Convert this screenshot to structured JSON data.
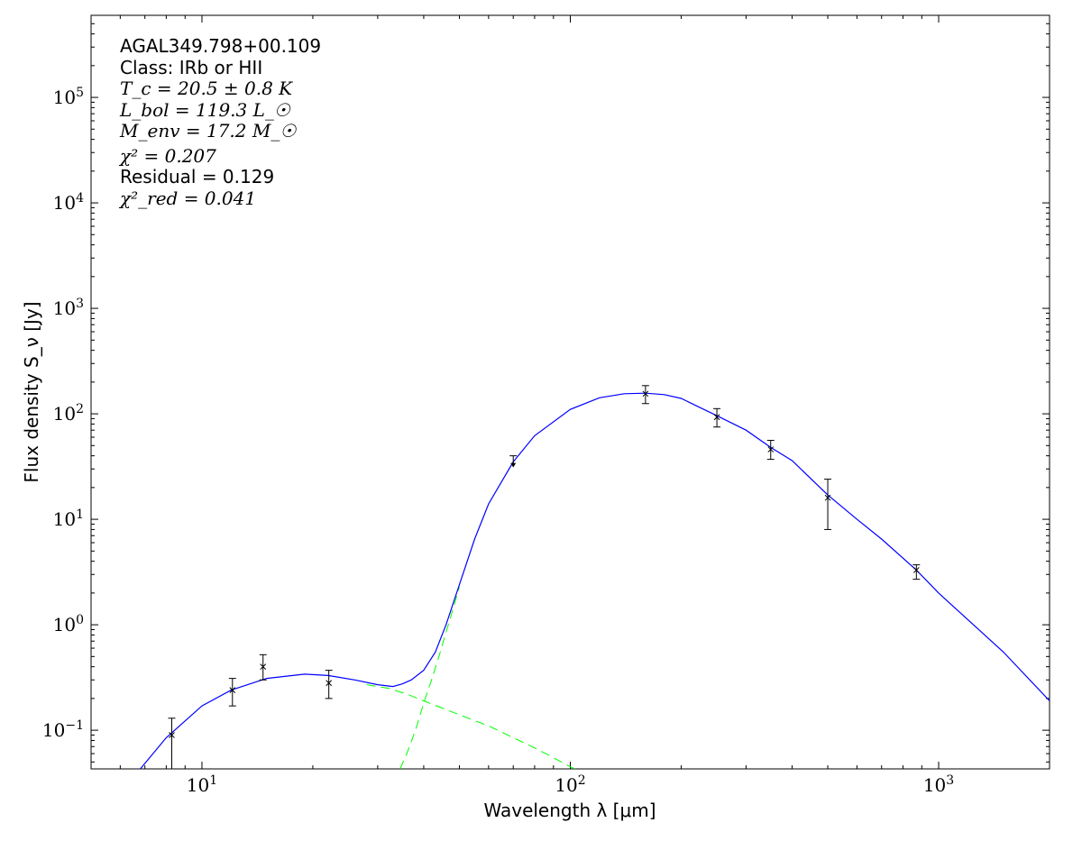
{
  "chart_data": {
    "type": "scatter",
    "x_scale": "log",
    "y_scale": "log",
    "xlim": [
      5,
      2000
    ],
    "ylim": [
      0.043,
      600000
    ],
    "xlabel": "Wavelength λ [μm]",
    "ylabel": "Flux density S_ν [Jy]",
    "x_ticks": [
      {
        "value": 10,
        "label": "10^1"
      },
      {
        "value": 100,
        "label": "10^2"
      },
      {
        "value": 1000,
        "label": "10^3"
      }
    ],
    "y_ticks": [
      {
        "value": 0.1,
        "label": "10^-1"
      },
      {
        "value": 1,
        "label": "10^0"
      },
      {
        "value": 10,
        "label": "10^1"
      },
      {
        "value": 100,
        "label": "10^2"
      },
      {
        "value": 1000,
        "label": "10^3"
      },
      {
        "value": 10000,
        "label": "10^4"
      },
      {
        "value": 100000,
        "label": "10^5"
      }
    ],
    "annotations": {
      "source": "AGAL349.798+00.109",
      "class": "Class: IRb or HII",
      "tc": "T_c = 20.5 ± 0.8 K",
      "lbol": "L_bol = 119.3 L_☉",
      "menv": "M_env = 17.2 M_☉",
      "chi2": "χ² = 0.207",
      "residual": "Residual = 0.129",
      "chi2red": "χ²_red = 0.041"
    },
    "measurements": [
      {
        "x": 8.28,
        "y": 0.09,
        "lo": 0.035,
        "hi": 0.13
      },
      {
        "x": 12.1,
        "y": 0.24,
        "lo": 0.17,
        "hi": 0.31
      },
      {
        "x": 14.65,
        "y": 0.4,
        "lo": 0.3,
        "hi": 0.52
      },
      {
        "x": 22.1,
        "y": 0.28,
        "lo": 0.2,
        "hi": 0.37
      },
      {
        "x": 160,
        "y": 155,
        "lo": 125,
        "hi": 185
      },
      {
        "x": 250,
        "y": 93,
        "lo": 75,
        "hi": 112
      },
      {
        "x": 350,
        "y": 46,
        "lo": 37,
        "hi": 56
      },
      {
        "x": 500,
        "y": 16,
        "lo": 8,
        "hi": 24
      },
      {
        "x": 870,
        "y": 3.3,
        "lo": 2.7,
        "hi": 3.7
      }
    ],
    "upper_limits": [
      {
        "x": 70,
        "y": 40
      }
    ],
    "model_total": [
      [
        6.8,
        0.043
      ],
      [
        8,
        0.085
      ],
      [
        10,
        0.17
      ],
      [
        12,
        0.24
      ],
      [
        15,
        0.31
      ],
      [
        19,
        0.34
      ],
      [
        22,
        0.33
      ],
      [
        26,
        0.3
      ],
      [
        30,
        0.27
      ],
      [
        33,
        0.26
      ],
      [
        35,
        0.275
      ],
      [
        37,
        0.3
      ],
      [
        40,
        0.37
      ],
      [
        43,
        0.55
      ],
      [
        46,
        1.0
      ],
      [
        50,
        2.4
      ],
      [
        55,
        6.5
      ],
      [
        60,
        14
      ],
      [
        70,
        35
      ],
      [
        80,
        62
      ],
      [
        100,
        110
      ],
      [
        120,
        142
      ],
      [
        140,
        155
      ],
      [
        160,
        157
      ],
      [
        180,
        152
      ],
      [
        200,
        140
      ],
      [
        250,
        96
      ],
      [
        300,
        70
      ],
      [
        350,
        48
      ],
      [
        400,
        36
      ],
      [
        500,
        17
      ],
      [
        600,
        10
      ],
      [
        700,
        6.5
      ],
      [
        870,
        3.3
      ],
      [
        1000,
        2.0
      ],
      [
        1500,
        0.55
      ],
      [
        2000,
        0.19
      ]
    ],
    "model_cold": [
      [
        34.5,
        0.043
      ],
      [
        36,
        0.06
      ],
      [
        38,
        0.1
      ],
      [
        40,
        0.18
      ],
      [
        42,
        0.3
      ],
      [
        44,
        0.5
      ],
      [
        46,
        0.85
      ],
      [
        48,
        1.4
      ],
      [
        50,
        2.3
      ]
    ],
    "model_warm": [
      [
        28,
        0.27
      ],
      [
        32,
        0.25
      ],
      [
        36,
        0.22
      ],
      [
        40,
        0.19
      ],
      [
        50,
        0.14
      ],
      [
        60,
        0.11
      ],
      [
        70,
        0.085
      ],
      [
        80,
        0.068
      ],
      [
        90,
        0.055
      ],
      [
        100,
        0.045
      ],
      [
        103,
        0.043
      ]
    ],
    "colors": {
      "model_total": "#0000ff",
      "model_components": "#00ff00",
      "points": "#000000"
    }
  }
}
